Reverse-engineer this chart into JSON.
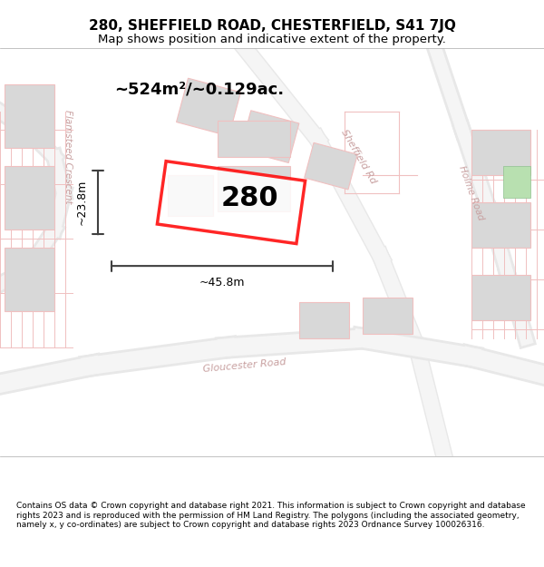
{
  "title": "280, SHEFFIELD ROAD, CHESTERFIELD, S41 7JQ",
  "subtitle": "Map shows position and indicative extent of the property.",
  "footer": "Contains OS data © Crown copyright and database right 2021. This information is subject to Crown copyright and database rights 2023 and is reproduced with the permission of HM Land Registry. The polygons (including the associated geometry, namely x, y co-ordinates) are subject to Crown copyright and database rights 2023 Ordnance Survey 100026316.",
  "area_label": "~524m²/~0.129ac.",
  "width_label": "~45.8m",
  "height_label": "~23.8m",
  "property_number": "280",
  "map_bg": "#f5f5f5",
  "road_color": "#f0c0c0",
  "building_color": "#d8d8d8",
  "property_outline_color": "#ff0000",
  "property_fill": "#ffffff",
  "road_text_color": "#c0a0a0",
  "dim_line_color": "#404040",
  "title_color": "#000000",
  "footer_color": "#000000"
}
